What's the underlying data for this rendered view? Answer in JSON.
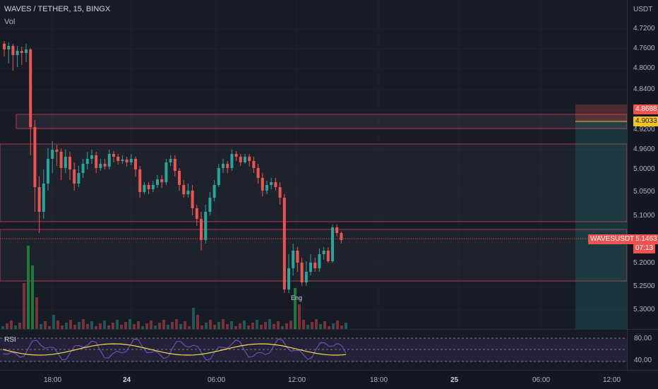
{
  "header": {
    "symbol_title": "WAVES / TETHER, 15, BINGX",
    "volume_label": "Vol"
  },
  "price_axis": {
    "currency": "USDT",
    "ticks": [
      "4.7200",
      "4.7600",
      "4.8000",
      "4.8400",
      "4.8800",
      "4.9200",
      "4.9600",
      "5.0000",
      "5.0500",
      "5.1000",
      "5.1500",
      "5.2000",
      "5.2500",
      "5.3000"
    ]
  },
  "price_tags": {
    "red_top": "4.8688",
    "yellow": "4.9033",
    "symbol_name": "WAVESUSDT",
    "last_price": "5.1463",
    "countdown": "07:13"
  },
  "rsi": {
    "label": "RSI",
    "ticks": [
      "80.00",
      "40.00"
    ]
  },
  "time_axis": {
    "ticks": [
      "18:00",
      "24",
      "06:00",
      "12:00",
      "18:00",
      "25",
      "06:00",
      "12:00"
    ]
  },
  "annotation": {
    "label": "Eng"
  },
  "colors": {
    "up": "#26a69a",
    "down": "#ef5350",
    "background": "#171b26",
    "rsi_line": "#7e57c2",
    "rsi_ma": "#f4e04d",
    "highlight": "#f5c518"
  }
}
